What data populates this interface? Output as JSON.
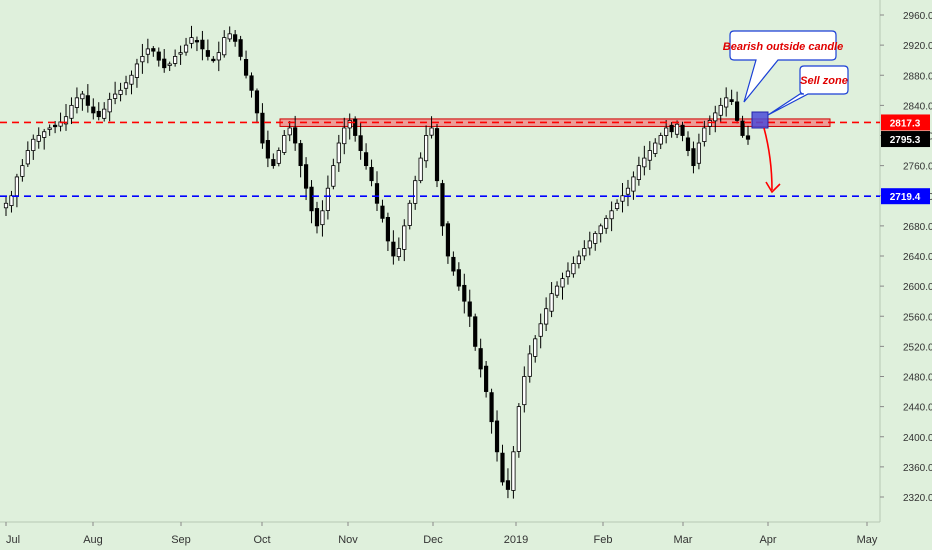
{
  "chart_data": {
    "type": "candlestick",
    "title": "",
    "xlabel": "",
    "ylabel": "",
    "ylim": [
      2290,
      2980
    ],
    "x_tick_labels": [
      "Jul",
      "Aug",
      "Sep",
      "Oct",
      "Nov",
      "Dec",
      "2019",
      "Feb",
      "Mar",
      "Apr",
      "May"
    ],
    "y_tick_labels": [
      "2320.0",
      "2360.0",
      "2400.0",
      "2440.0",
      "2480.0",
      "2520.0",
      "2560.0",
      "2600.0",
      "2640.0",
      "2680.0",
      "2720.0",
      "2760.0",
      "2800.0",
      "2840.0",
      "2880.0",
      "2920.0",
      "2960.0"
    ],
    "y_ticks": [
      2320,
      2360,
      2400,
      2440,
      2480,
      2520,
      2560,
      2600,
      2640,
      2680,
      2720,
      2760,
      2800,
      2840,
      2880,
      2920,
      2960
    ],
    "grid": false,
    "colors": {
      "background": "#dff0dc",
      "candle": "#000000",
      "resistance": "#ff0000",
      "support": "#0000ff",
      "zone_fill": "#f08080",
      "sell_zone": "#4b4bd8",
      "annotation_text": "#e00000"
    },
    "reference_lines": [
      {
        "label": "2817.3",
        "value": 2817.3,
        "color": "#ff0000",
        "style": "dashed"
      },
      {
        "label": "2719.4",
        "value": 2719.4,
        "color": "#0000ff",
        "style": "dashed"
      }
    ],
    "last_price": {
      "label": "2795.3",
      "value": 2795.3
    },
    "resistance_zone": {
      "from": 2812,
      "to": 2822
    },
    "annotations": [
      {
        "text": "Bearish outside candle"
      },
      {
        "text": "Sell zone"
      }
    ],
    "ohlc_path": [
      2710,
      2720,
      2745,
      2760,
      2780,
      2795,
      2800,
      2805,
      2810,
      2812,
      2818,
      2825,
      2840,
      2850,
      2855,
      2840,
      2830,
      2825,
      2835,
      2848,
      2855,
      2860,
      2870,
      2880,
      2895,
      2905,
      2915,
      2912,
      2900,
      2890,
      2895,
      2905,
      2910,
      2920,
      2930,
      2925,
      2915,
      2905,
      2900,
      2910,
      2930,
      2935,
      2925,
      2905,
      2880,
      2860,
      2830,
      2790,
      2770,
      2760,
      2780,
      2800,
      2810,
      2790,
      2760,
      2730,
      2700,
      2680,
      2700,
      2730,
      2760,
      2790,
      2810,
      2820,
      2800,
      2780,
      2760,
      2740,
      2710,
      2690,
      2660,
      2640,
      2650,
      2680,
      2710,
      2740,
      2770,
      2800,
      2810,
      2740,
      2680,
      2640,
      2620,
      2600,
      2580,
      2560,
      2520,
      2490,
      2460,
      2420,
      2380,
      2340,
      2330,
      2380,
      2440,
      2480,
      2510,
      2530,
      2550,
      2570,
      2590,
      2600,
      2610,
      2620,
      2630,
      2640,
      2650,
      2660,
      2670,
      2680,
      2690,
      2700,
      2710,
      2720,
      2730,
      2745,
      2760,
      2770,
      2780,
      2790,
      2800,
      2810,
      2805,
      2815,
      2800,
      2780,
      2760,
      2790,
      2810,
      2820,
      2830,
      2840,
      2850,
      2845,
      2820,
      2800,
      2795
    ]
  }
}
